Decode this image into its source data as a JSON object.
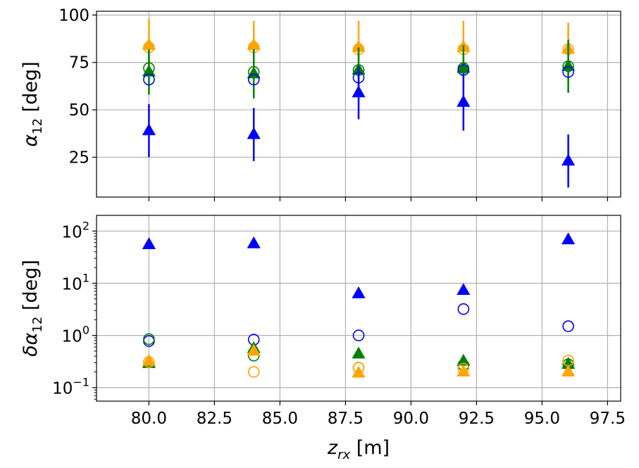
{
  "chart_data": [
    {
      "type": "scatter",
      "xlabel": "",
      "ylabel": "α12 [deg]",
      "ylabel_main": "α",
      "ylabel_sub": "12",
      "ylabel_unit": " [deg]",
      "xlim": [
        78,
        98
      ],
      "ylim": [
        4,
        102
      ],
      "xscale": "linear",
      "yscale": "linear",
      "grid": true,
      "x_ticks": [
        80.0,
        82.5,
        85.0,
        87.5,
        90.0,
        92.5,
        95.0,
        97.5
      ],
      "y_ticks": [
        25,
        50,
        75,
        100
      ],
      "y_tick_labels": [
        "25",
        "50",
        "75",
        "100"
      ],
      "series": [
        {
          "marker": "triangle-filled",
          "color": "#ffa500",
          "x": [
            80,
            84,
            88,
            92,
            96
          ],
          "y": [
            84,
            84,
            83,
            83,
            82
          ],
          "err": [
            14,
            13,
            14,
            14,
            14
          ]
        },
        {
          "marker": "circle-open",
          "color": "#ffa500",
          "x": [
            80,
            84,
            88,
            92,
            96
          ],
          "y": [
            83,
            83,
            82,
            82,
            82
          ]
        },
        {
          "marker": "triangle-filled",
          "color": "#008000",
          "x": [
            80,
            84,
            88,
            92,
            96
          ],
          "y": [
            70,
            69,
            71,
            72,
            73
          ],
          "err": [
            12,
            13,
            12,
            12,
            14
          ]
        },
        {
          "marker": "circle-open",
          "color": "#008000",
          "x": [
            80,
            84,
            88,
            92,
            96
          ],
          "y": [
            72,
            70,
            71,
            72,
            73
          ]
        },
        {
          "marker": "circle-open",
          "color": "#0000ff",
          "x": [
            80,
            84,
            88,
            92,
            96
          ],
          "y": [
            66,
            66,
            67,
            71,
            70
          ]
        },
        {
          "marker": "triangle-filled",
          "color": "#0000ff",
          "x": [
            80,
            84,
            88,
            92,
            96
          ],
          "y": [
            39,
            37,
            59,
            54,
            23
          ],
          "err": [
            14,
            14,
            14,
            15,
            14
          ]
        }
      ]
    },
    {
      "type": "scatter",
      "xlabel": "z_rx [m]",
      "xlabel_main": "z",
      "xlabel_sub": "rx",
      "xlabel_unit": " [m]",
      "ylabel": "δα12 [deg]",
      "ylabel_main": "δα",
      "ylabel_sub": "12",
      "ylabel_unit": " [deg]",
      "xlim": [
        78,
        98
      ],
      "ylim": [
        0.055,
        200
      ],
      "xscale": "linear",
      "yscale": "log",
      "grid": true,
      "x_ticks": [
        80.0,
        82.5,
        85.0,
        87.5,
        90.0,
        92.5,
        95.0,
        97.5
      ],
      "x_tick_labels": [
        "80.0",
        "82.5",
        "85.0",
        "87.5",
        "90.0",
        "92.5",
        "95.0",
        "97.5"
      ],
      "y_ticks": [
        0.1,
        1,
        10,
        100
      ],
      "y_tick_base": [
        "10",
        "10",
        "10",
        "10"
      ],
      "y_tick_exp": [
        "−1",
        "0",
        "1",
        "2"
      ],
      "series": [
        {
          "marker": "triangle-filled",
          "color": "#0000ff",
          "x": [
            80,
            84,
            88,
            92,
            96
          ],
          "y": [
            55,
            57,
            6.3,
            7.3,
            68
          ]
        },
        {
          "marker": "circle-open",
          "color": "#0000ff",
          "x": [
            80,
            84,
            88,
            92,
            96
          ],
          "y": [
            0.78,
            0.83,
            1.0,
            3.2,
            1.5
          ]
        },
        {
          "marker": "circle-open",
          "color": "#008000",
          "x": [
            80,
            84,
            88,
            92,
            96
          ],
          "y": [
            0.85,
            0.41,
            0.24,
            0.27,
            0.28
          ]
        },
        {
          "marker": "triangle-filled",
          "color": "#008000",
          "x": [
            80,
            84,
            88,
            92,
            96
          ],
          "y": [
            0.29,
            0.56,
            0.44,
            0.32,
            0.28
          ]
        },
        {
          "marker": "circle-open",
          "color": "#ffa500",
          "x": [
            80,
            84,
            88,
            92,
            96
          ],
          "y": [
            0.31,
            0.2,
            0.24,
            0.23,
            0.33
          ]
        },
        {
          "marker": "triangle-filled",
          "color": "#ffa500",
          "x": [
            80,
            84,
            88,
            92,
            96
          ],
          "y": [
            0.32,
            0.5,
            0.19,
            0.2,
            0.2
          ]
        }
      ]
    }
  ]
}
